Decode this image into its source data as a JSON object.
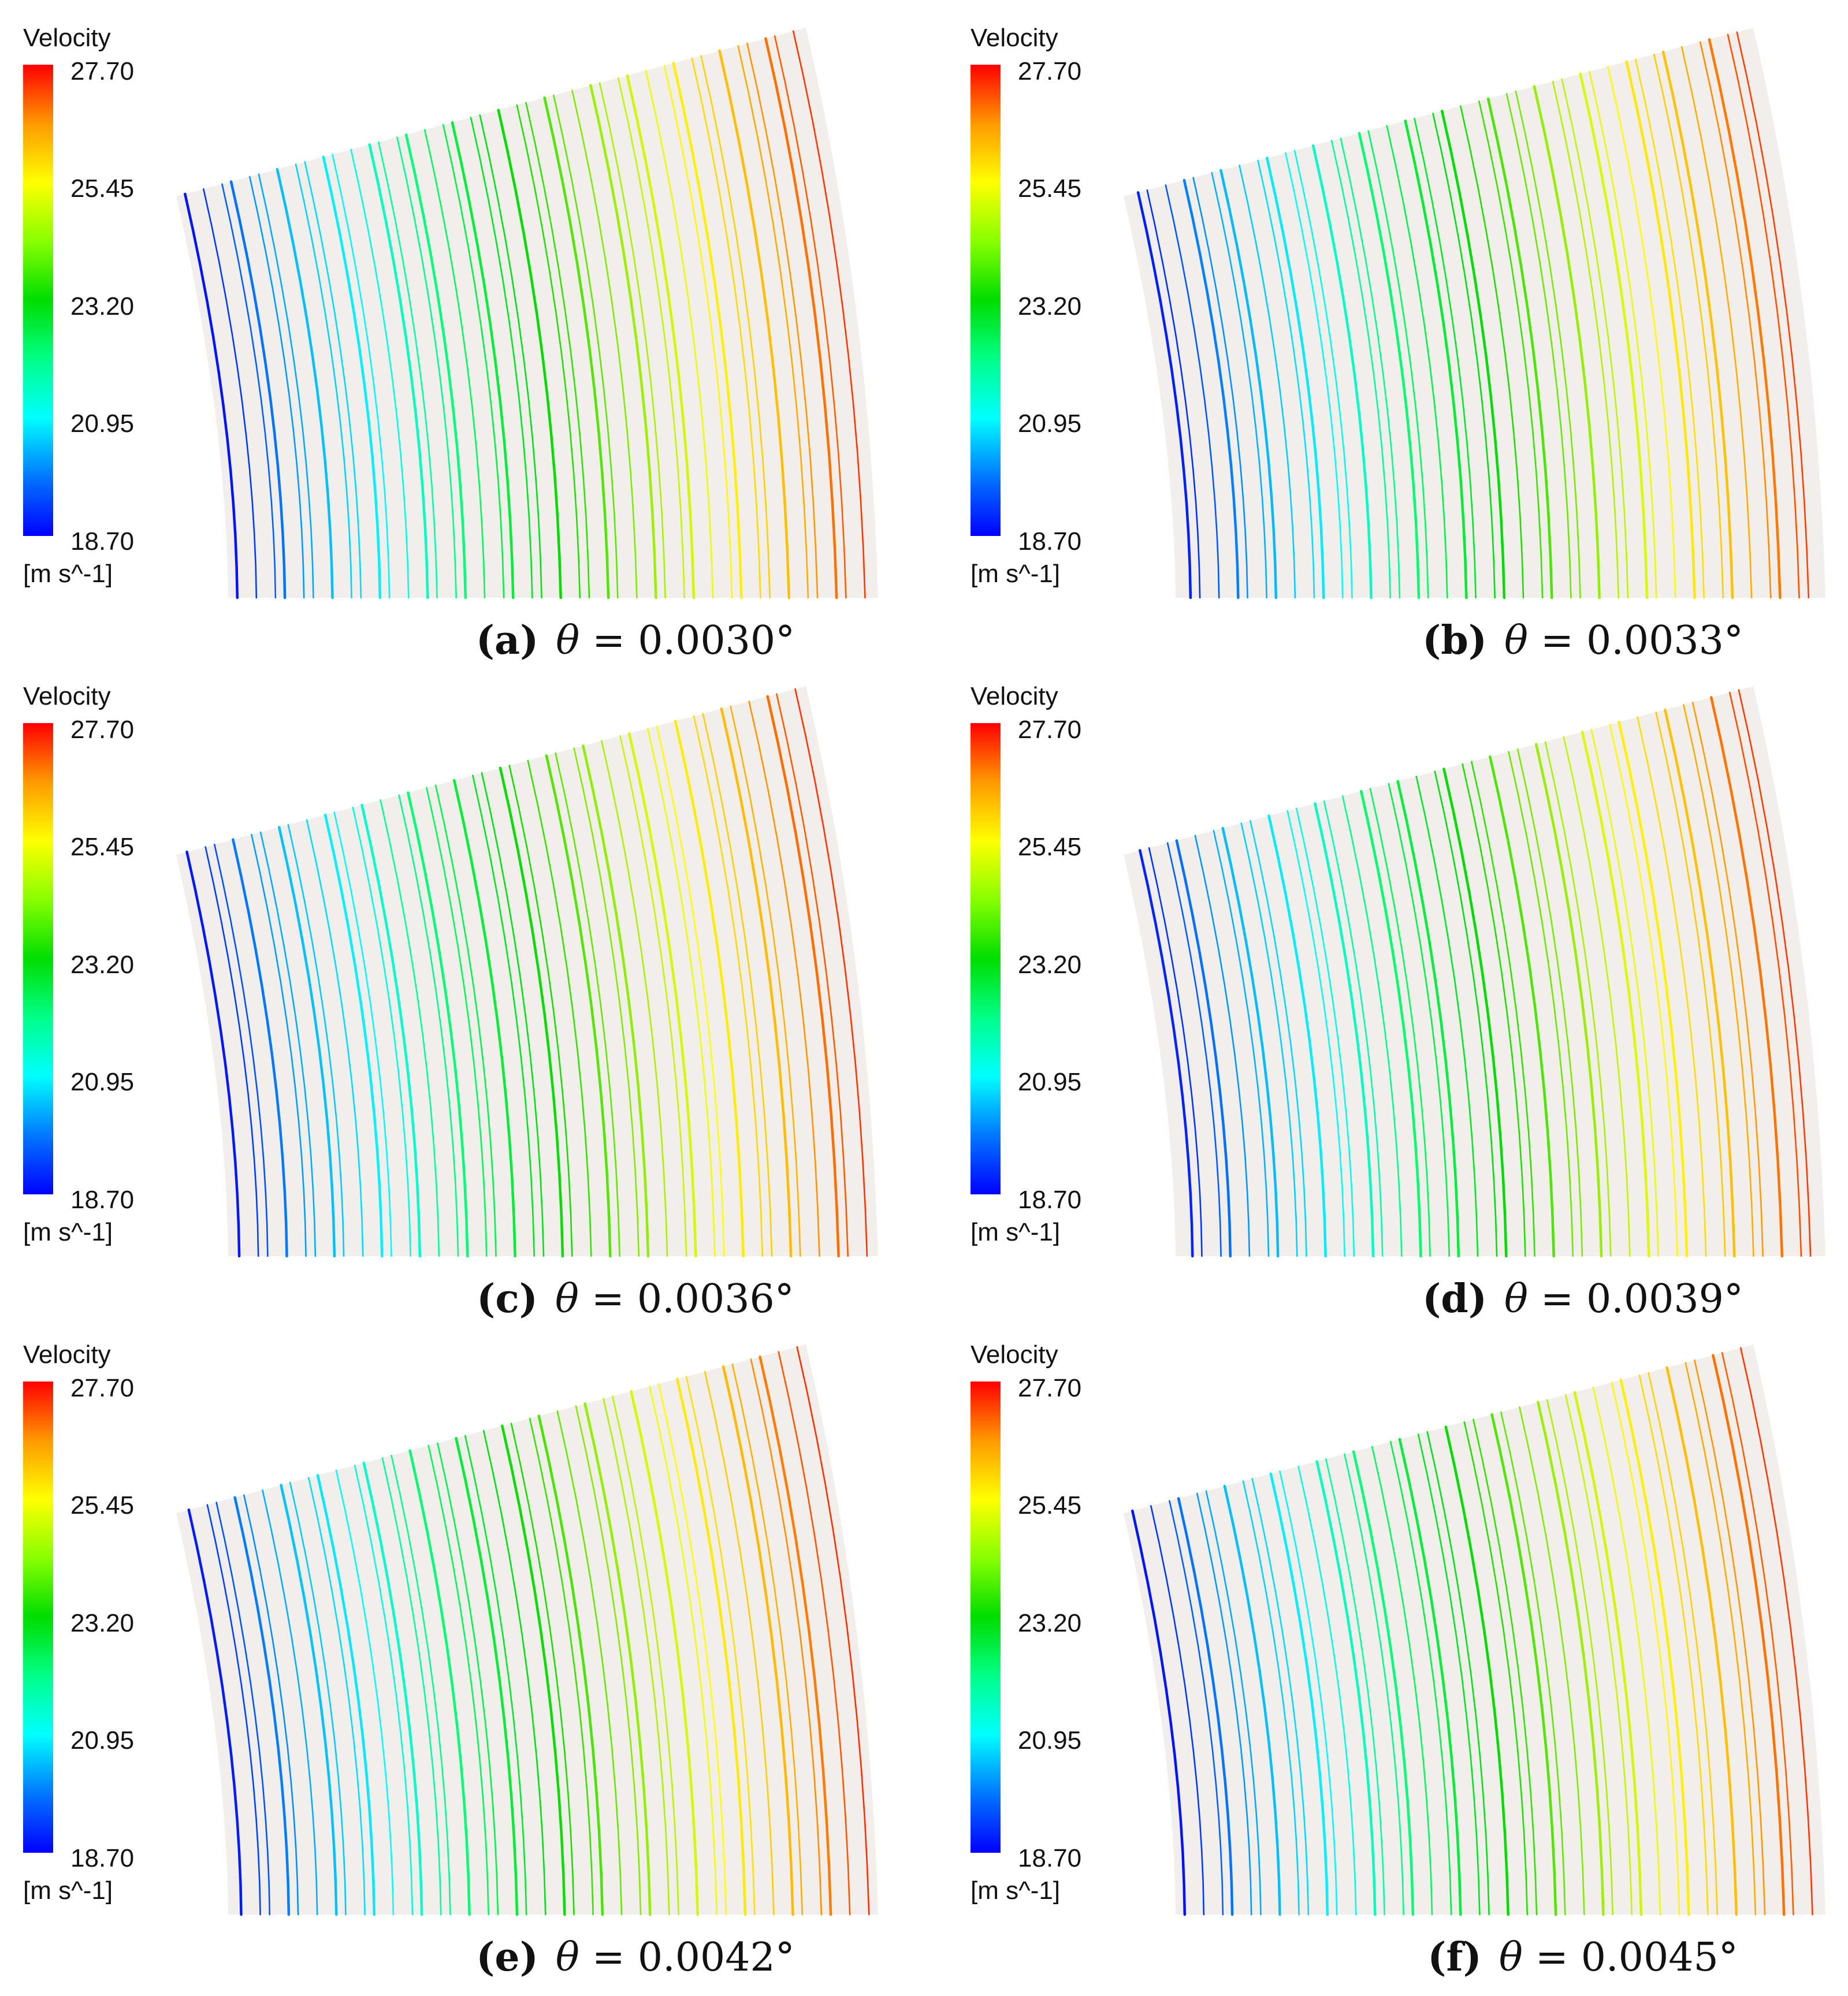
{
  "figure": {
    "legend": {
      "title": "Velocity",
      "unit": "[m s^-1]",
      "min": 18.7,
      "max": 27.7,
      "tick_labels": [
        "27.70",
        "25.45",
        "23.20",
        "20.95",
        "18.70"
      ],
      "colormap": [
        "#0000ff",
        "#00aaff",
        "#00ffff",
        "#00ff66",
        "#00dd00",
        "#88ee00",
        "#ffff00",
        "#ffaa00",
        "#ff0000"
      ]
    },
    "domain_fill": "#f2eeec",
    "panels": [
      {
        "label": "(a)",
        "symbol": "θ",
        "equals": "=",
        "value": "0.0030°"
      },
      {
        "label": "(b)",
        "symbol": "θ",
        "equals": "=",
        "value": "0.0033°"
      },
      {
        "label": "(c)",
        "symbol": "θ",
        "equals": "=",
        "value": "0.0036°"
      },
      {
        "label": "(d)",
        "symbol": "θ",
        "equals": "=",
        "value": "0.0039°"
      },
      {
        "label": "(e)",
        "symbol": "θ",
        "equals": "=",
        "value": "0.0042°"
      },
      {
        "label": "(f)",
        "symbol": "θ",
        "equals": "=",
        "value": "0.0045°"
      }
    ]
  }
}
